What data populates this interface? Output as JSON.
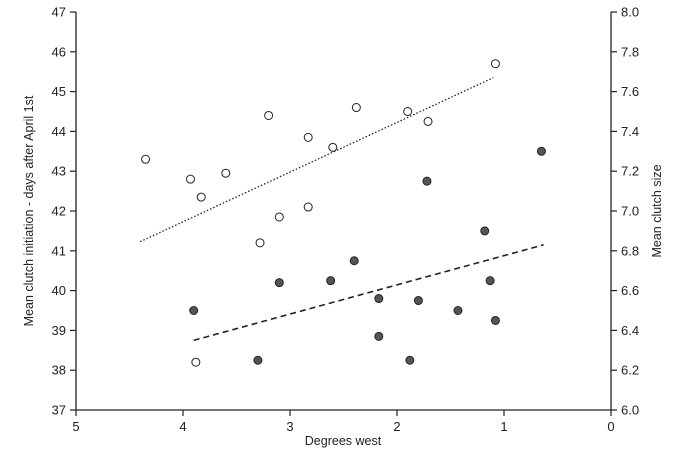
{
  "chart_data": {
    "type": "scatter",
    "xlabel": "Degrees west",
    "ylabel_left": "Mean clutch initiation - days after April 1st",
    "ylabel_right": "Mean clutch size",
    "x_range": [
      5,
      0
    ],
    "x_reversed": true,
    "ylim_left": [
      37,
      47
    ],
    "ylim_right": [
      6.0,
      8.0
    ],
    "x_ticks": [
      "5",
      "4",
      "3",
      "2",
      "1",
      "0"
    ],
    "y_left_ticks": [
      "37",
      "38",
      "39",
      "40",
      "41",
      "42",
      "43",
      "44",
      "45",
      "46",
      "47"
    ],
    "y_right_ticks": [
      "6.0",
      "6.2",
      "6.4",
      "6.6",
      "6.8",
      "7.0",
      "7.2",
      "7.4",
      "7.6",
      "7.8",
      "8.0"
    ],
    "grid": false,
    "series": [
      {
        "marker": "open-circle",
        "axis": "left",
        "color": "#ffffff",
        "points": [
          {
            "x": 4.35,
            "y": 43.3
          },
          {
            "x": 3.93,
            "y": 42.8
          },
          {
            "x": 3.83,
            "y": 42.35
          },
          {
            "x": 3.6,
            "y": 42.95
          },
          {
            "x": 3.2,
            "y": 44.4
          },
          {
            "x": 3.1,
            "y": 41.85
          },
          {
            "x": 3.28,
            "y": 41.2
          },
          {
            "x": 2.83,
            "y": 43.85
          },
          {
            "x": 2.83,
            "y": 42.1
          },
          {
            "x": 2.6,
            "y": 43.6
          },
          {
            "x": 2.38,
            "y": 44.6
          },
          {
            "x": 1.9,
            "y": 44.5
          },
          {
            "x": 1.71,
            "y": 44.25
          },
          {
            "x": 1.08,
            "y": 45.7
          },
          {
            "x": 3.88,
            "y": 38.2
          }
        ],
        "trend": {
          "x": [
            4.4,
            1.1
          ],
          "y": [
            41.23,
            45.35
          ],
          "style": "dotted"
        }
      },
      {
        "marker": "filled-circle",
        "axis": "right",
        "color": "#555555",
        "points": [
          {
            "x": 3.9,
            "y": 6.5
          },
          {
            "x": 3.3,
            "y": 6.25
          },
          {
            "x": 3.1,
            "y": 6.64
          },
          {
            "x": 2.62,
            "y": 6.65
          },
          {
            "x": 2.4,
            "y": 6.75
          },
          {
            "x": 2.17,
            "y": 6.56
          },
          {
            "x": 2.17,
            "y": 6.37
          },
          {
            "x": 1.8,
            "y": 6.55
          },
          {
            "x": 1.72,
            "y": 7.15
          },
          {
            "x": 1.88,
            "y": 6.25
          },
          {
            "x": 1.43,
            "y": 6.5
          },
          {
            "x": 1.18,
            "y": 6.9
          },
          {
            "x": 1.13,
            "y": 6.65
          },
          {
            "x": 1.08,
            "y": 6.45
          },
          {
            "x": 0.65,
            "y": 7.3
          }
        ],
        "trend": {
          "x": [
            3.9,
            0.63
          ],
          "y": [
            6.35,
            6.83
          ],
          "style": "dashed"
        }
      }
    ]
  }
}
